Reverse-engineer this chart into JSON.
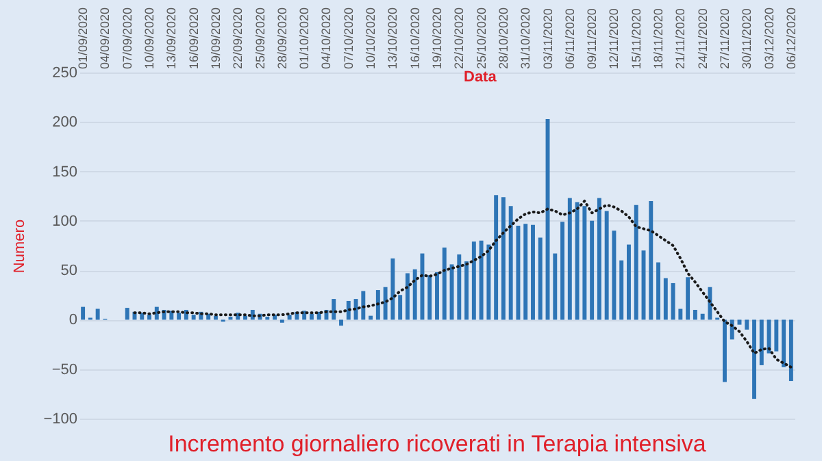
{
  "chart_data": {
    "type": "bar",
    "title": "Incremento  giornaliero ricoverati in Terapia intensiva",
    "xlabel": "Data",
    "ylabel": "Numero",
    "categories": [
      "01/09/2020",
      null,
      null,
      "04/09/2020",
      null,
      null,
      "07/09/2020",
      null,
      null,
      "10/09/2020",
      null,
      null,
      "13/09/2020",
      null,
      null,
      "16/09/2020",
      null,
      null,
      "19/09/2020",
      null,
      null,
      "22/09/2020",
      null,
      null,
      "25/09/2020",
      null,
      null,
      "28/09/2020",
      null,
      null,
      "01/10/2020",
      null,
      null,
      "04/10/2020",
      null,
      null,
      "07/10/2020",
      null,
      null,
      "10/10/2020",
      null,
      null,
      "13/10/2020",
      null,
      null,
      "16/10/2020",
      null,
      null,
      "19/10/2020",
      null,
      null,
      "22/10/2020",
      null,
      null,
      "25/10/2020",
      null,
      null,
      "28/10/2020",
      null,
      null,
      "31/10/2020",
      null,
      null,
      "03/11/2020",
      null,
      null,
      "06/11/2020",
      null,
      null,
      "09/11/2020",
      null,
      null,
      "12/11/2020",
      null,
      null,
      "15/11/2020",
      null,
      null,
      "18/11/2020",
      null,
      null,
      "21/11/2020",
      null,
      null,
      "24/11/2020",
      null,
      null,
      "27/11/2020",
      null,
      null,
      "30/11/2020",
      null,
      null,
      "03/12/2020",
      null,
      null,
      "06/12/2020"
    ],
    "series": [
      {
        "color": "#2e75b6",
        "values": [
          13,
          2,
          11,
          1,
          0,
          0,
          12,
          8,
          7,
          5,
          13,
          10,
          9,
          7,
          10,
          5,
          8,
          6,
          4,
          -2,
          3,
          7,
          4,
          10,
          6,
          3,
          5,
          -3,
          5,
          8,
          9,
          6,
          8,
          10,
          21,
          -6,
          19,
          21,
          29,
          4,
          30,
          33,
          62,
          25,
          47,
          51,
          67,
          45,
          48,
          73,
          56,
          66,
          59,
          79,
          80,
          76,
          126,
          124,
          115,
          95,
          97,
          96,
          83,
          203,
          67,
          99,
          123,
          119,
          115,
          100,
          123,
          110,
          90,
          60,
          76,
          116,
          70,
          120,
          58,
          42,
          37,
          11,
          43,
          10,
          6,
          33,
          2,
          -63,
          -20,
          -5,
          -10,
          -80,
          -46,
          -34,
          -32,
          -48,
          -62
        ]
      },
      {
        "type": "line",
        "color": "#1a1a1a",
        "line_style": "dotted",
        "values": [
          null,
          null,
          null,
          null,
          null,
          null,
          null,
          7,
          7,
          6,
          7,
          8,
          8,
          8,
          7,
          7,
          6,
          6,
          5,
          5,
          5,
          5,
          5,
          4,
          4,
          5,
          5,
          5,
          6,
          7,
          7,
          7,
          7,
          8,
          8,
          8,
          10,
          11,
          13,
          14,
          16,
          18,
          22,
          29,
          33,
          40,
          45,
          44,
          46,
          50,
          52,
          54,
          56,
          60,
          64,
          70,
          80,
          88,
          95,
          102,
          107,
          109,
          108,
          112,
          110,
          106,
          108,
          112,
          120,
          108,
          112,
          116,
          114,
          110,
          104,
          94,
          92,
          90,
          85,
          80,
          75,
          62,
          47,
          38,
          28,
          18,
          8,
          -2,
          -6,
          -12,
          -22,
          -34,
          -30,
          -29,
          -40,
          -44,
          -48
        ]
      }
    ],
    "ylim": [
      -100,
      250
    ],
    "yticks": [
      -100,
      -50,
      0,
      50,
      100,
      150,
      200,
      250
    ],
    "grid": "y"
  }
}
